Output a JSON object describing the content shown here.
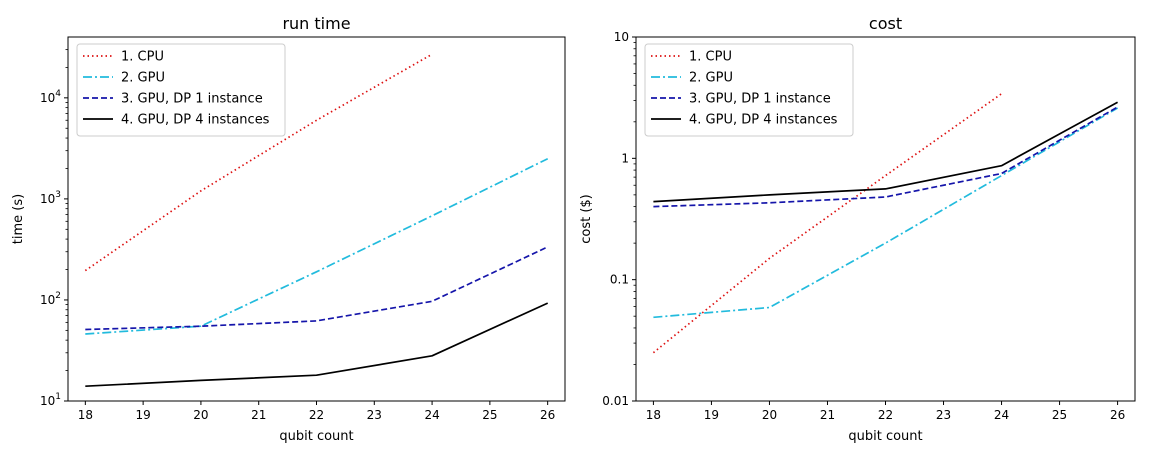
{
  "chart_data": [
    {
      "type": "line",
      "title": "run time",
      "xlabel": "qubit count",
      "ylabel": "time (s)",
      "yscale": "log",
      "xlim": [
        17.7,
        26.3
      ],
      "ylim": [
        10,
        40000
      ],
      "xticks": [
        18,
        19,
        20,
        21,
        22,
        23,
        24,
        25,
        26
      ],
      "yticks": [
        {
          "value": 10,
          "base": "10",
          "exp": "1"
        },
        {
          "value": 100,
          "base": "10",
          "exp": "2"
        },
        {
          "value": 1000,
          "base": "10",
          "exp": "3"
        },
        {
          "value": 10000,
          "base": "10",
          "exp": "4"
        }
      ],
      "legend_position": "top-left",
      "series": [
        {
          "name": "1. CPU",
          "color": "#dd1111",
          "style": "dotted",
          "x": [
            18,
            20,
            22,
            24
          ],
          "y": [
            195,
            1200,
            6000,
            27000
          ]
        },
        {
          "name": "2. GPU",
          "color": "#22bbdd",
          "style": "dashdot",
          "x": [
            18,
            20,
            22,
            24,
            26
          ],
          "y": [
            46,
            55,
            190,
            680,
            2500
          ]
        },
        {
          "name": "3. GPU, DP 1 instance",
          "color": "#1515aa",
          "style": "dashed",
          "x": [
            18,
            20,
            22,
            24,
            26
          ],
          "y": [
            51,
            55,
            62,
            97,
            335
          ]
        },
        {
          "name": "4. GPU, DP 4 instances",
          "color": "#000000",
          "style": "solid",
          "x": [
            18,
            20,
            22,
            24,
            26
          ],
          "y": [
            14,
            16,
            18,
            28,
            93
          ]
        }
      ]
    },
    {
      "type": "line",
      "title": "cost",
      "xlabel": "qubit count",
      "ylabel": "cost ($)",
      "yscale": "log",
      "xlim": [
        17.7,
        26.3
      ],
      "ylim": [
        0.01,
        10
      ],
      "xticks": [
        18,
        19,
        20,
        21,
        22,
        23,
        24,
        25,
        26
      ],
      "yticks": [
        {
          "value": 0.01,
          "label": "0.01"
        },
        {
          "value": 0.1,
          "label": "0.1"
        },
        {
          "value": 1,
          "label": "1"
        },
        {
          "value": 10,
          "label": "10"
        }
      ],
      "legend_position": "top-left",
      "series": [
        {
          "name": "1. CPU",
          "color": "#dd1111",
          "style": "dotted",
          "x": [
            18,
            20,
            22,
            24
          ],
          "y": [
            0.025,
            0.15,
            0.72,
            3.4
          ]
        },
        {
          "name": "2. GPU",
          "color": "#22bbdd",
          "style": "dashdot",
          "x": [
            18,
            20,
            22,
            24,
            26
          ],
          "y": [
            0.049,
            0.059,
            0.2,
            0.72,
            2.6
          ]
        },
        {
          "name": "3. GPU, DP 1 instance",
          "color": "#1515aa",
          "style": "dashed",
          "x": [
            18,
            20,
            22,
            24,
            26
          ],
          "y": [
            0.4,
            0.43,
            0.48,
            0.75,
            2.65
          ]
        },
        {
          "name": "4. GPU, DP 4 instances",
          "color": "#000000",
          "style": "solid",
          "x": [
            18,
            20,
            22,
            24,
            26
          ],
          "y": [
            0.44,
            0.5,
            0.56,
            0.87,
            2.9
          ]
        }
      ]
    }
  ]
}
